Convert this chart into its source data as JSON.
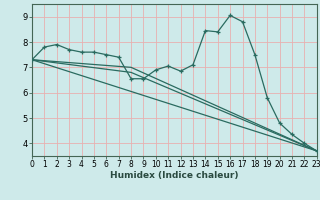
{
  "xlabel": "Humidex (Indice chaleur)",
  "bg_color": "#ceeaea",
  "plot_bg_color": "#ceeaea",
  "line_color": "#2a6b60",
  "grid_color": "#e8b0b0",
  "xmin": 0,
  "xmax": 23,
  "ymin": 3.5,
  "ymax": 9.5,
  "yticks": [
    4,
    5,
    6,
    7,
    8,
    9
  ],
  "xticks": [
    0,
    1,
    2,
    3,
    4,
    5,
    6,
    7,
    8,
    9,
    10,
    11,
    12,
    13,
    14,
    15,
    16,
    17,
    18,
    19,
    20,
    21,
    22,
    23
  ],
  "series": [
    {
      "x": [
        0,
        1,
        2,
        3,
        4,
        5,
        6,
        7,
        8,
        9,
        10,
        11,
        12,
        13,
        14,
        15,
        16,
        17,
        18,
        19,
        20,
        21,
        22,
        23
      ],
      "y": [
        7.3,
        7.8,
        7.9,
        7.7,
        7.6,
        7.6,
        7.5,
        7.4,
        6.55,
        6.55,
        6.9,
        7.05,
        6.85,
        7.1,
        8.45,
        8.4,
        9.05,
        8.8,
        7.5,
        5.8,
        4.8,
        4.35,
        4.0,
        3.7
      ],
      "marker": true
    },
    {
      "x": [
        0,
        8,
        23
      ],
      "y": [
        7.3,
        7.0,
        3.7
      ],
      "marker": false
    },
    {
      "x": [
        0,
        8,
        23
      ],
      "y": [
        7.3,
        6.8,
        3.7
      ],
      "marker": false
    },
    {
      "x": [
        0,
        23
      ],
      "y": [
        7.3,
        3.7
      ],
      "marker": false
    }
  ]
}
